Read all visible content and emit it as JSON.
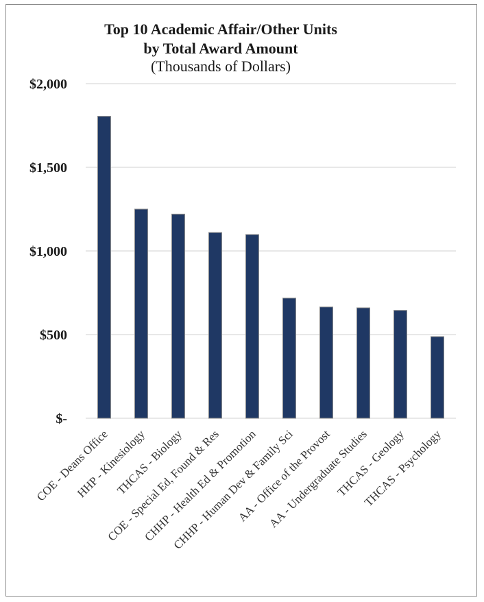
{
  "chart_data": {
    "type": "bar",
    "title": "Top 10 Academic Affair/Other Units",
    "title_line2": "by Total Award Amount",
    "subtitle": "(Thousands of Dollars)",
    "xlabel": "",
    "ylabel": "",
    "ylim": [
      0,
      2000
    ],
    "yticks": [
      0,
      500,
      1000,
      1500,
      2000
    ],
    "ytick_labels": [
      "$-",
      "$500",
      "$1,000",
      "$1,500",
      "$2,000"
    ],
    "grid": true,
    "legend": "none",
    "categories": [
      "COE - Deans Office",
      "HHP - Kinesiology",
      "THCAS - Biology",
      "COE - Special Ed, Found & Res",
      "CHHP - Health Ed & Promotion",
      "CHHP - Human Dev & Family Sci",
      "AA - Office of the Provost",
      "AA - Undergraduate Studies",
      "THCAS - Geology",
      "THCAS - Psychology"
    ],
    "values": [
      1805,
      1250,
      1220,
      1110,
      1098,
      718,
      665,
      660,
      645,
      488
    ],
    "colors": {
      "bar": "#1f3864",
      "bar_edge": "#8c8c8c",
      "grid": "#d9d9d9"
    }
  }
}
